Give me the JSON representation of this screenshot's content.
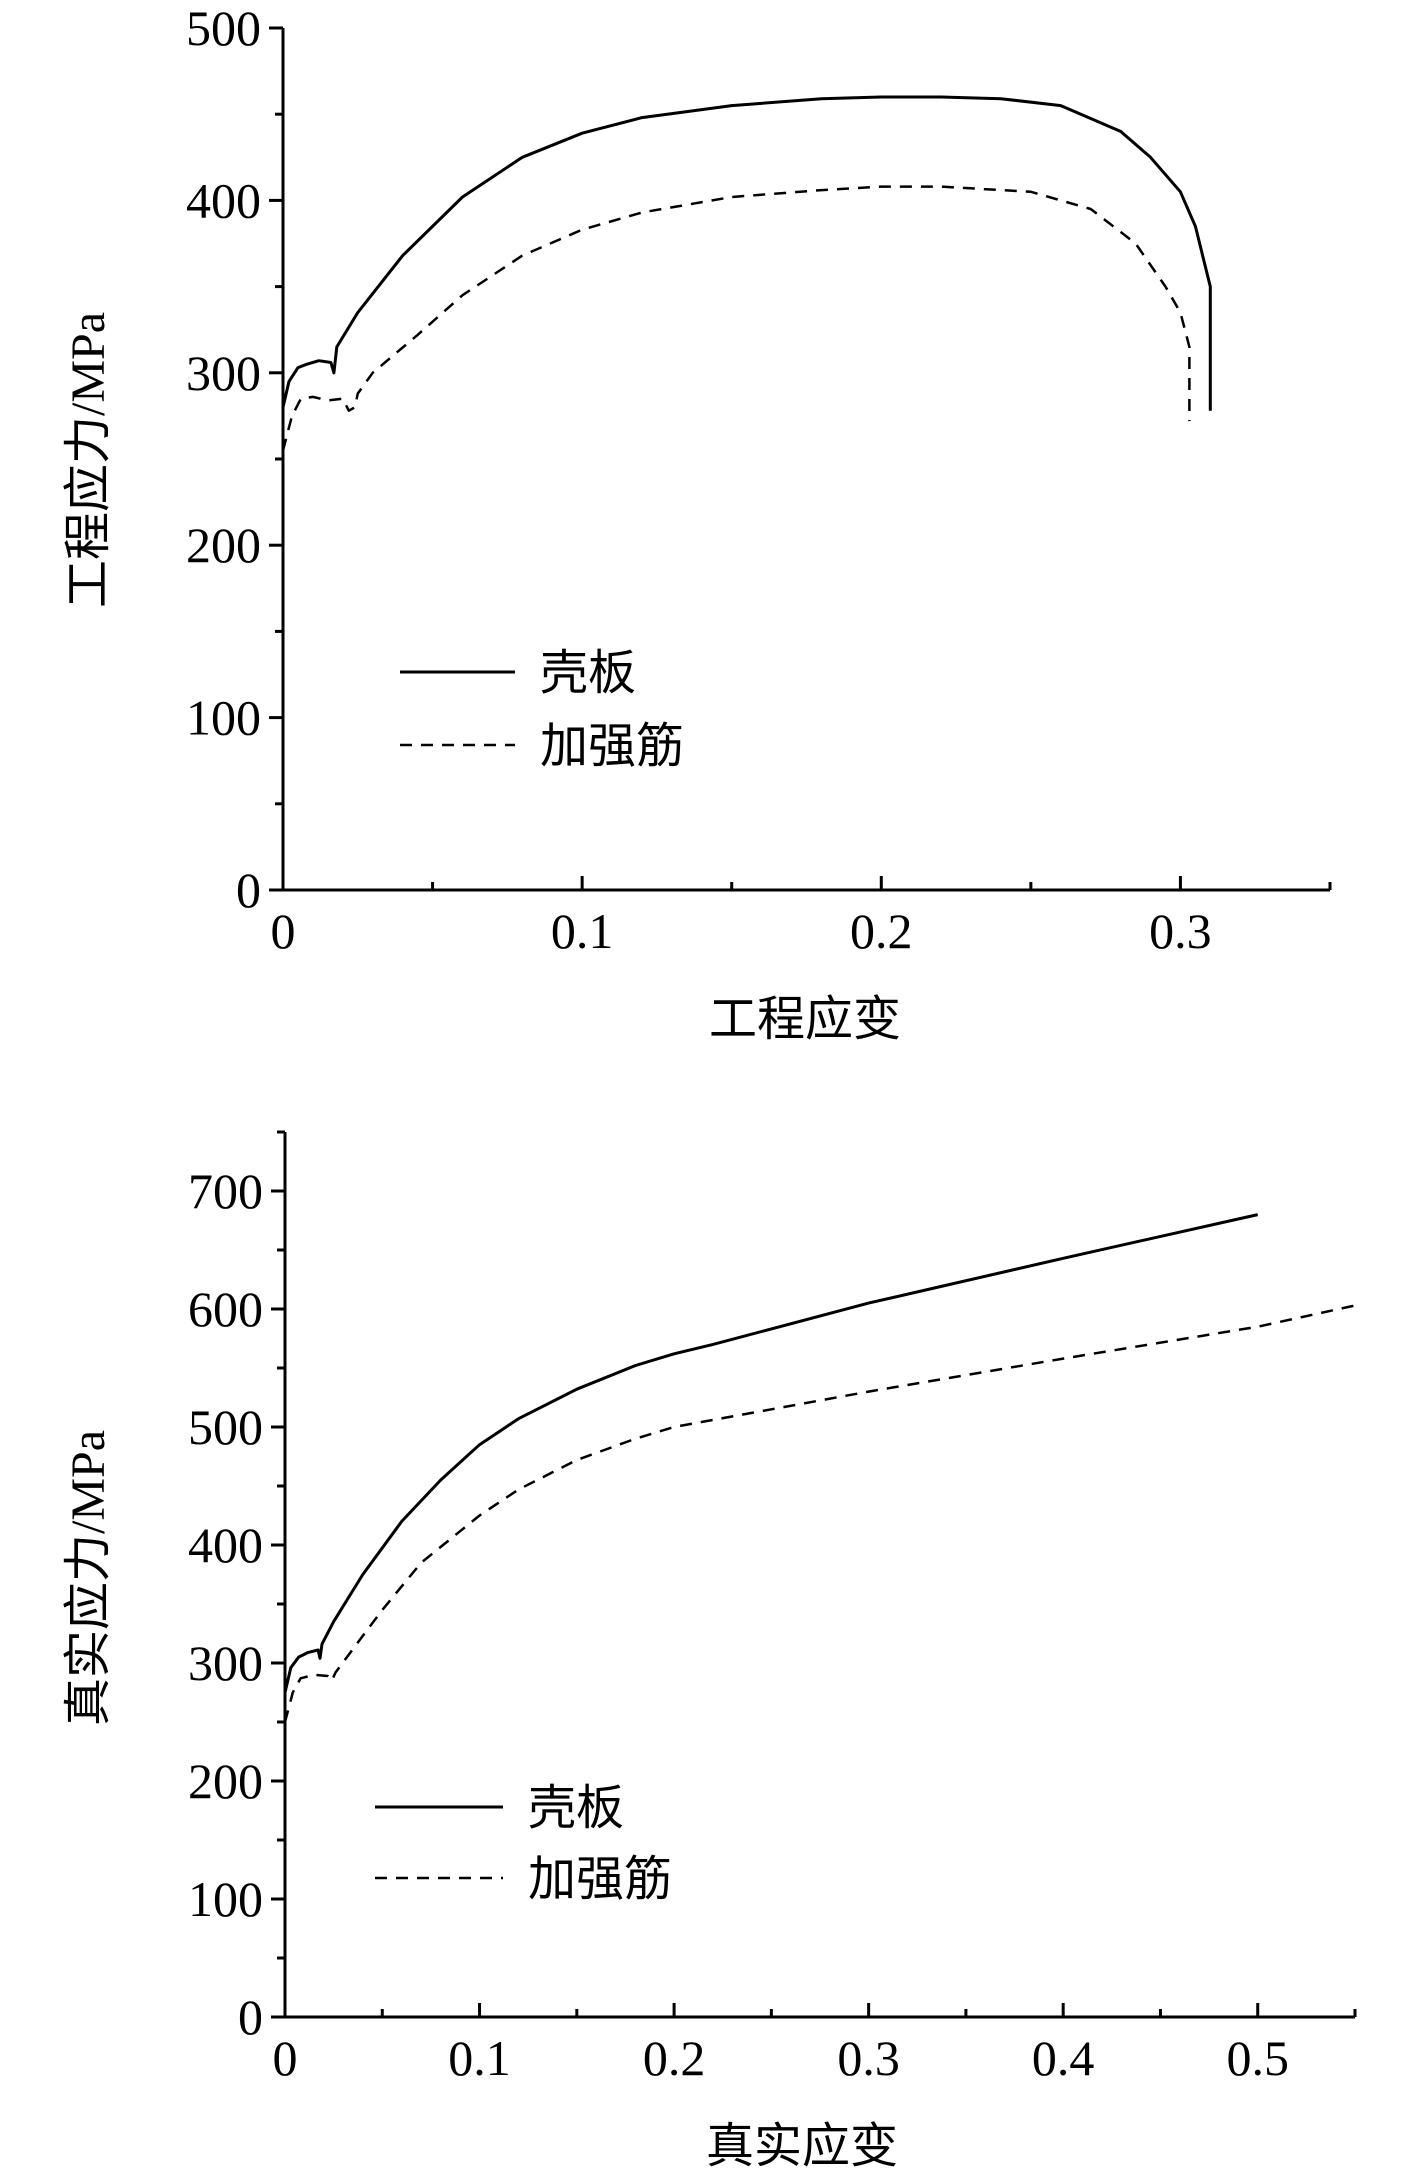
{
  "chart_data": [
    {
      "type": "line",
      "title": "",
      "xlabel": "工程应变",
      "ylabel": "工程应力/MPa",
      "xlim": [
        0,
        0.35
      ],
      "ylim": [
        0,
        500
      ],
      "xticks": [
        0,
        0.1,
        0.2,
        0.3
      ],
      "xtick_labels": [
        "0",
        "0.1",
        "0.2",
        "0.3"
      ],
      "yticks": [
        0,
        100,
        200,
        300,
        400,
        500
      ],
      "ytick_labels": [
        "0",
        "100",
        "200",
        "300",
        "400",
        "500"
      ],
      "grid": false,
      "legend": "center-left",
      "series": [
        {
          "name": "壳板",
          "style": "solid",
          "color": "#000000",
          "x": [
            0,
            0.002,
            0.005,
            0.008,
            0.012,
            0.016,
            0.017,
            0.018,
            0.025,
            0.04,
            0.06,
            0.08,
            0.1,
            0.12,
            0.15,
            0.18,
            0.2,
            0.22,
            0.24,
            0.26,
            0.28,
            0.29,
            0.3,
            0.305,
            0.31,
            0.31
          ],
          "y": [
            280,
            295,
            303,
            305,
            307,
            306,
            300,
            315,
            335,
            368,
            402,
            425,
            439,
            448,
            455,
            459,
            460,
            460,
            459,
            455,
            440,
            425,
            405,
            385,
            350,
            278
          ]
        },
        {
          "name": "加强筋",
          "style": "dashed",
          "color": "#000000",
          "x": [
            0,
            0.003,
            0.006,
            0.01,
            0.015,
            0.02,
            0.022,
            0.024,
            0.025,
            0.03,
            0.045,
            0.06,
            0.08,
            0.1,
            0.12,
            0.15,
            0.18,
            0.2,
            0.22,
            0.25,
            0.27,
            0.285,
            0.295,
            0.3,
            0.303,
            0.303
          ],
          "y": [
            255,
            275,
            285,
            286,
            284,
            285,
            278,
            280,
            288,
            300,
            322,
            345,
            368,
            383,
            393,
            402,
            406,
            408,
            408,
            405,
            395,
            375,
            350,
            335,
            315,
            272
          ]
        }
      ]
    },
    {
      "type": "line",
      "title": "",
      "xlabel": "真实应变",
      "ylabel": "真实应力/MPa",
      "xlim": [
        0,
        0.55
      ],
      "ylim": [
        0,
        750
      ],
      "xticks": [
        0,
        0.1,
        0.2,
        0.3,
        0.4,
        0.5
      ],
      "xtick_labels": [
        "0",
        "0.1",
        "0.2",
        "0.3",
        "0.4",
        "0.5"
      ],
      "yticks": [
        0,
        100,
        200,
        300,
        400,
        500,
        600,
        700
      ],
      "ytick_labels": [
        "0",
        "100",
        "200",
        "300",
        "400",
        "500",
        "600",
        "700"
      ],
      "grid": false,
      "legend": "center-left",
      "series": [
        {
          "name": "壳板",
          "style": "solid",
          "color": "#000000",
          "x": [
            0,
            0.003,
            0.007,
            0.012,
            0.017,
            0.018,
            0.019,
            0.025,
            0.04,
            0.06,
            0.08,
            0.1,
            0.12,
            0.15,
            0.18,
            0.2,
            0.22,
            0.3,
            0.4,
            0.5
          ],
          "y": [
            275,
            296,
            305,
            309,
            311,
            304,
            316,
            335,
            375,
            420,
            455,
            485,
            507,
            532,
            552,
            562,
            570,
            605,
            643,
            680
          ]
        },
        {
          "name": "加强筋",
          "style": "dashed",
          "color": "#000000",
          "x": [
            0,
            0.004,
            0.008,
            0.015,
            0.022,
            0.024,
            0.026,
            0.035,
            0.05,
            0.07,
            0.1,
            0.12,
            0.15,
            0.18,
            0.2,
            0.25,
            0.3,
            0.4,
            0.5,
            0.55
          ],
          "y": [
            250,
            275,
            287,
            290,
            289,
            285,
            292,
            312,
            345,
            385,
            425,
            447,
            472,
            490,
            500,
            515,
            530,
            558,
            585,
            603
          ]
        }
      ]
    }
  ]
}
